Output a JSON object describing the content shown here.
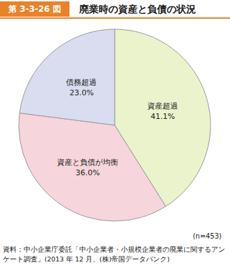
{
  "chart_data": {
    "type": "pie",
    "figure_label": "第 3-3-26 図",
    "title": "廃業時の資産と負債の状況",
    "categories": [
      "資産超過",
      "資産と負債が均衡",
      "債務超過"
    ],
    "values": [
      41.1,
      36.0,
      23.0
    ],
    "value_labels": [
      "41.1%",
      "36.0%",
      "23.0%"
    ],
    "colors": [
      "#eaf3cc",
      "#f6d5dc",
      "#d9ddef"
    ],
    "data_labels": true,
    "note": "(n=453)",
    "source": "資料：中小企業庁委託「中小企業者・小規模企業者の廃業に関するアンケート調査」(2013 年 12 月、(株)帝国データバンク)"
  }
}
